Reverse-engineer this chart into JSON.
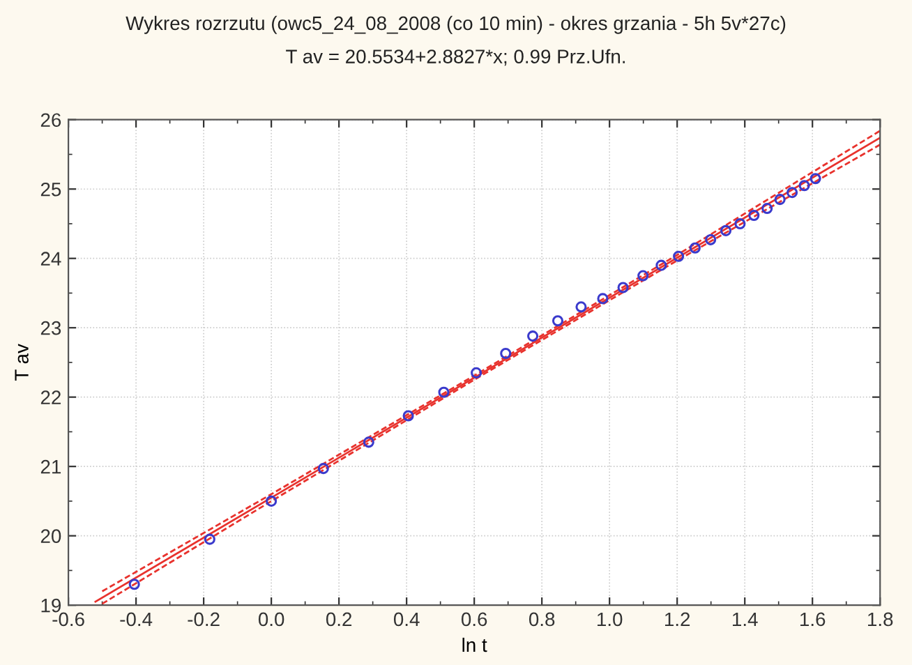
{
  "chart_data": {
    "type": "scatter",
    "title": "Wykres rozrzutu (owc5_24_08_2008 (co 10 min) - okres grzania - 5h 5v*27c)",
    "subtitle": "T av = 20.5534+2.8827*x; 0.99 Prz.Ufn.",
    "xlabel": "ln t",
    "ylabel": "T av",
    "xlim": [
      -0.6,
      1.8
    ],
    "ylim": [
      19,
      26
    ],
    "xticks": [
      {
        "value": -0.6,
        "label": "-0.6"
      },
      {
        "value": -0.4,
        "label": "-0.4"
      },
      {
        "value": -0.2,
        "label": "-0.2"
      },
      {
        "value": 0.0,
        "label": "0.0"
      },
      {
        "value": 0.2,
        "label": "0.2"
      },
      {
        "value": 0.4,
        "label": "0.4"
      },
      {
        "value": 0.6,
        "label": "0.6"
      },
      {
        "value": 0.8,
        "label": "0.8"
      },
      {
        "value": 1.0,
        "label": "1.0"
      },
      {
        "value": 1.2,
        "label": "1.2"
      },
      {
        "value": 1.4,
        "label": "1.4"
      },
      {
        "value": 1.6,
        "label": "1.6"
      },
      {
        "value": 1.8,
        "label": "1.8"
      }
    ],
    "yticks": [
      19,
      20,
      21,
      22,
      23,
      24,
      25,
      26
    ],
    "grid": true,
    "legend": false,
    "series": [
      {
        "marker": "circle",
        "color": "#3a3acc",
        "x": [
          -0.405,
          -0.182,
          0.0,
          0.154,
          0.288,
          0.405,
          0.51,
          0.606,
          0.693,
          0.773,
          0.847,
          0.916,
          0.98,
          1.04,
          1.099,
          1.153,
          1.204,
          1.253,
          1.299,
          1.344,
          1.386,
          1.427,
          1.466,
          1.504,
          1.54,
          1.576,
          1.609
        ],
        "values": [
          19.3,
          19.95,
          20.5,
          20.97,
          21.35,
          21.73,
          22.07,
          22.35,
          22.63,
          22.88,
          23.1,
          23.3,
          23.42,
          23.58,
          23.75,
          23.9,
          24.03,
          24.15,
          24.27,
          24.4,
          24.5,
          24.62,
          24.72,
          24.85,
          24.95,
          25.05,
          25.15
        ]
      },
      {
        "type": "line",
        "line_style": "solid",
        "color": "#e8322d",
        "x": [
          -0.52,
          1.8
        ],
        "values": [
          19.05,
          25.74
        ]
      },
      {
        "type": "line",
        "line_style": "dashed",
        "color": "#e8322d",
        "x": [
          -0.5,
          0.0,
          0.6,
          1.2,
          1.8
        ],
        "values": [
          19.02,
          20.5,
          22.25,
          23.97,
          25.64
        ]
      },
      {
        "type": "line",
        "line_style": "dashed",
        "color": "#e8322d",
        "x": [
          -0.5,
          0.0,
          0.6,
          1.2,
          1.8
        ],
        "values": [
          19.2,
          20.6,
          22.31,
          24.05,
          25.84
        ]
      }
    ]
  }
}
